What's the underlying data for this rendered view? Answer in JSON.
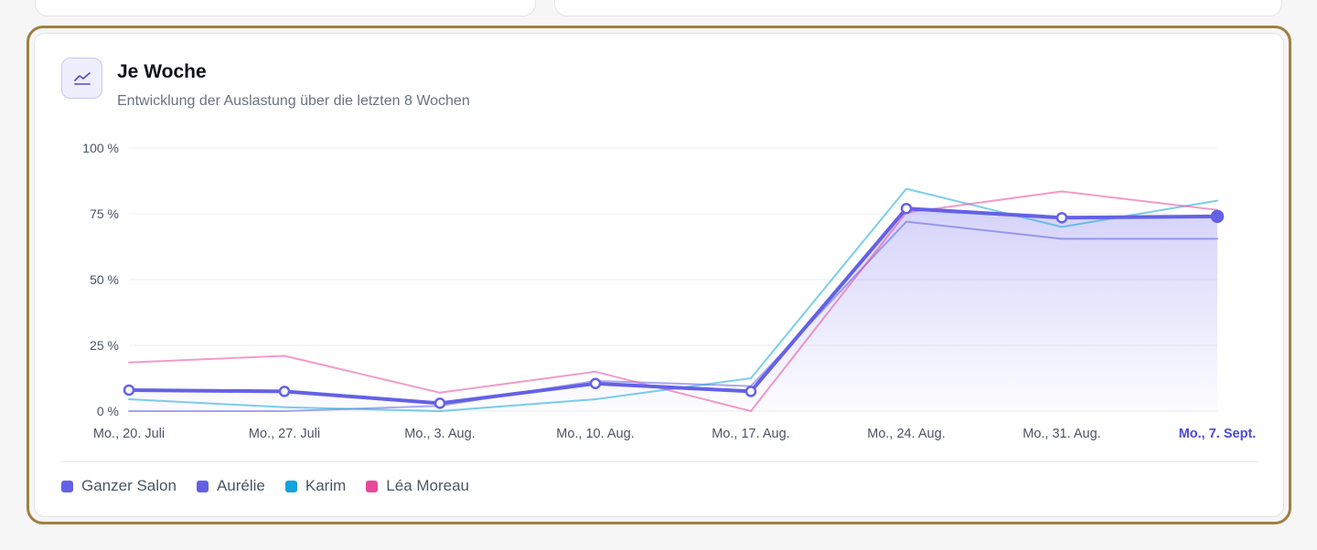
{
  "card": {
    "title": "Je Woche",
    "subtitle": "Entwicklung der Auslastung über die letzten 8 Wochen",
    "icon": "line-chart-icon"
  },
  "chart_data": {
    "type": "line",
    "title": "Je Woche",
    "subtitle": "Entwicklung der Auslastung über die letzten 8 Wochen",
    "categories": [
      "Mo., 20. Juli",
      "Mo., 27. Juli",
      "Mo., 3. Aug.",
      "Mo., 10. Aug.",
      "Mo., 17. Aug.",
      "Mo., 24. Aug.",
      "Mo., 31. Aug.",
      "Mo., 7. Sept."
    ],
    "highlighted_category": "Mo., 7. Sept.",
    "ylim": [
      0,
      100
    ],
    "y_ticks": [
      0,
      25,
      50,
      75,
      100
    ],
    "y_tick_labels": [
      "0 %",
      "25 %",
      "50 %",
      "75 %",
      "100 %"
    ],
    "grid": true,
    "legend_position": "bottom-left",
    "series": [
      {
        "name": "Ganzer Salon",
        "color": "#6461e6",
        "emphasis": true,
        "area_fill": true,
        "values": [
          8,
          7.5,
          3,
          10.5,
          7.5,
          77,
          73.5,
          74
        ]
      },
      {
        "name": "Aurélie",
        "color": "#6361e3",
        "values": [
          0,
          0,
          2,
          11.5,
          9.5,
          72,
          65.5,
          65.5
        ]
      },
      {
        "name": "Karim",
        "color": "#12a4dc",
        "values": [
          4.5,
          1.5,
          0,
          4.5,
          12.5,
          84.5,
          70,
          80
        ]
      },
      {
        "name": "Léa Moreau",
        "color": "#e8499b",
        "values": [
          18.5,
          21,
          7,
          15,
          0,
          75.5,
          83.5,
          76.5
        ]
      }
    ]
  }
}
